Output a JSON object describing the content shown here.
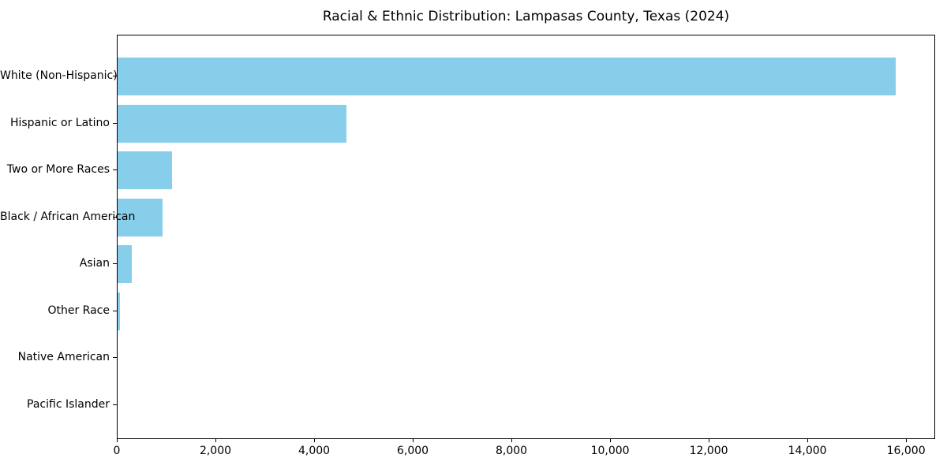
{
  "chart_data": {
    "type": "bar",
    "orientation": "horizontal",
    "title": "Racial & Ethnic Distribution: Lampasas County, Texas (2024)",
    "categories": [
      "White (Non-Hispanic)",
      "Hispanic or Latino",
      "Two or More Races",
      "Black / African American",
      "Asian",
      "Other Race",
      "Native American",
      "Pacific Islander"
    ],
    "values": [
      15800,
      4650,
      1100,
      910,
      285,
      50,
      0,
      0
    ],
    "xlabel": "",
    "ylabel": "",
    "xlim": [
      0,
      16590
    ],
    "xticks": [
      0,
      2000,
      4000,
      6000,
      8000,
      10000,
      12000,
      14000,
      16000
    ],
    "xtick_labels": [
      "0",
      "2,000",
      "4,000",
      "6,000",
      "8,000",
      "10,000",
      "12,000",
      "14,000",
      "16,000"
    ],
    "grid": false,
    "legend": null,
    "bar_color": "#87CEEB",
    "axis_color": "#000000",
    "text_color": "#000000",
    "background": "#FFFFFF"
  }
}
